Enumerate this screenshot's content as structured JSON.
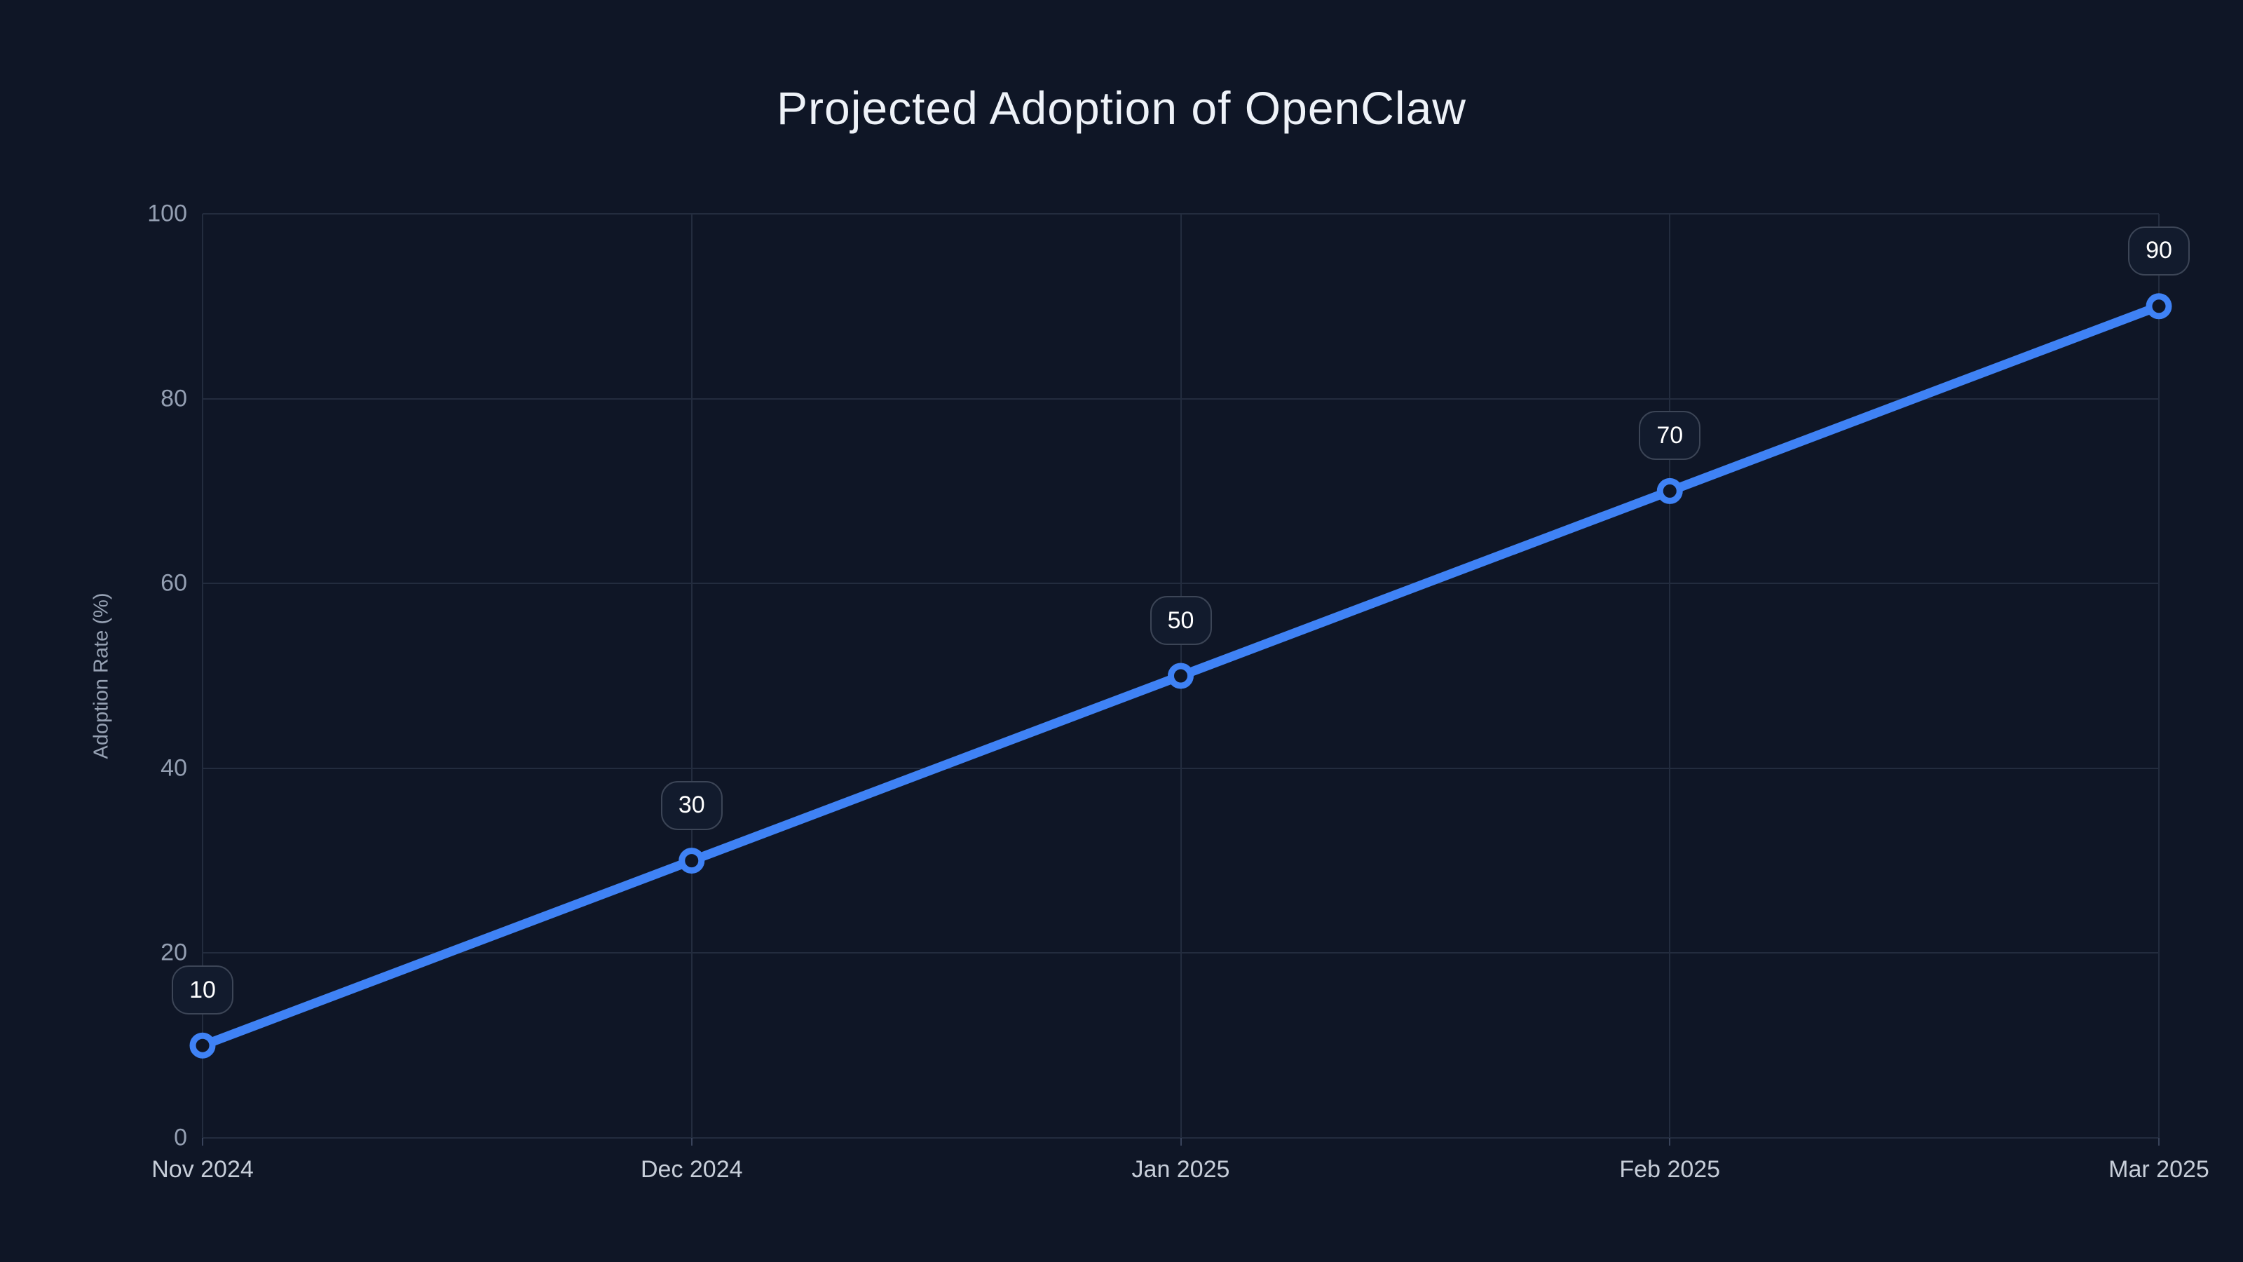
{
  "title": "Projected Adoption of OpenClaw",
  "chart_data": {
    "type": "line",
    "title": "Projected Adoption of OpenClaw",
    "categories": [
      "Nov 2024",
      "Dec 2024",
      "Jan 2025",
      "Feb 2025",
      "Mar 2025"
    ],
    "values": [
      10,
      30,
      50,
      70,
      90
    ],
    "xlabel": "",
    "ylabel": "Adoption Rate (%)",
    "ylim": [
      0,
      100
    ],
    "yticks": [
      0,
      20,
      40,
      60,
      80,
      100
    ],
    "grid": true,
    "legend": "none",
    "data_labels_shown": true,
    "colors": {
      "line": "#3f82f5",
      "marker_ring": "#3f82f5",
      "marker_fill": "#0f1626",
      "background": "#0f1626",
      "gridline": "#232c3e",
      "label_box_border": "#3c4556",
      "label_box_fill": "#121b2d"
    }
  }
}
